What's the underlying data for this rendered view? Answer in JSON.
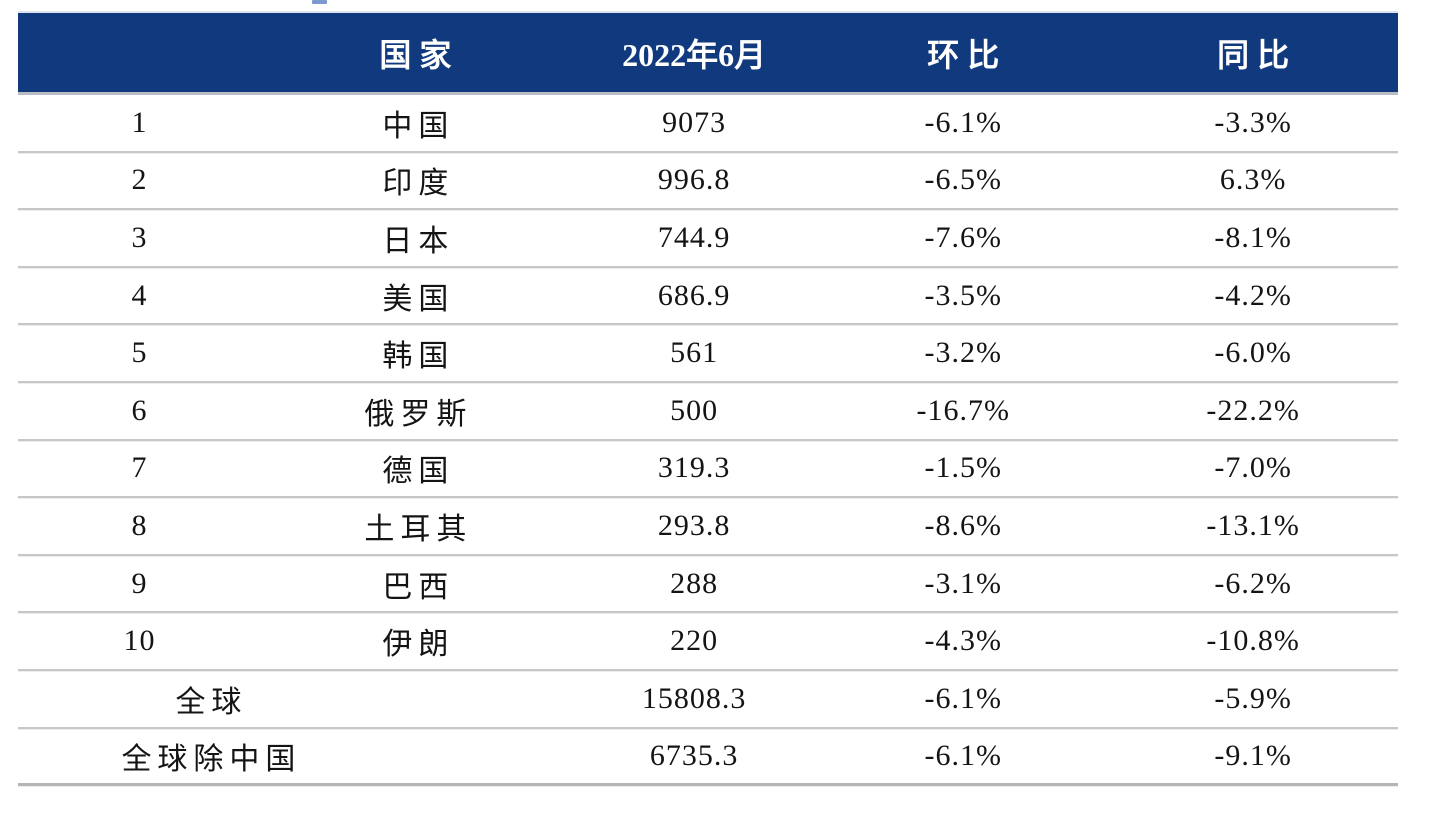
{
  "chart_data": {
    "type": "table",
    "title": "",
    "columns": [
      "",
      "国家",
      "2022年6月",
      "环比",
      "同比"
    ],
    "rows": [
      [
        1,
        "中国",
        9073,
        "-6.1%",
        "-3.3%"
      ],
      [
        2,
        "印度",
        996.8,
        "-6.5%",
        "6.3%"
      ],
      [
        3,
        "日本",
        744.9,
        "-7.6%",
        "-8.1%"
      ],
      [
        4,
        "美国",
        686.9,
        "-3.5%",
        "-4.2%"
      ],
      [
        5,
        "韩国",
        561,
        "-3.2%",
        "-6.0%"
      ],
      [
        6,
        "俄罗斯",
        500,
        "-16.7%",
        "-22.2%"
      ],
      [
        7,
        "德国",
        319.3,
        "-1.5%",
        "-7.0%"
      ],
      [
        8,
        "土耳其",
        293.8,
        "-8.6%",
        "-13.1%"
      ],
      [
        9,
        "巴西",
        288,
        "-3.1%",
        "-6.2%"
      ],
      [
        10,
        "伊朗",
        220,
        "-4.3%",
        "-10.8%"
      ]
    ],
    "totals": [
      [
        "全球",
        15808.3,
        "-6.1%",
        "-5.9%"
      ],
      [
        "全球除中国",
        6735.3,
        "-6.1%",
        "-9.1%"
      ]
    ]
  },
  "table": {
    "header": {
      "rank": "",
      "country": "国家",
      "value": "2022年6月",
      "mom": "环比",
      "yoy": "同比"
    },
    "rows": [
      {
        "rank": "1",
        "country": "中国",
        "value": "9073",
        "mom": "-6.1%",
        "yoy": "-3.3%"
      },
      {
        "rank": "2",
        "country": "印度",
        "value": "996.8",
        "mom": "-6.5%",
        "yoy": "6.3%"
      },
      {
        "rank": "3",
        "country": "日本",
        "value": "744.9",
        "mom": "-7.6%",
        "yoy": "-8.1%"
      },
      {
        "rank": "4",
        "country": "美国",
        "value": "686.9",
        "mom": "-3.5%",
        "yoy": "-4.2%"
      },
      {
        "rank": "5",
        "country": "韩国",
        "value": "561",
        "mom": "-3.2%",
        "yoy": "-6.0%"
      },
      {
        "rank": "6",
        "country": "俄罗斯",
        "value": "500",
        "mom": "-16.7%",
        "yoy": "-22.2%"
      },
      {
        "rank": "7",
        "country": "德国",
        "value": "319.3",
        "mom": "-1.5%",
        "yoy": "-7.0%"
      },
      {
        "rank": "8",
        "country": "土耳其",
        "value": "293.8",
        "mom": "-8.6%",
        "yoy": "-13.1%"
      },
      {
        "rank": "9",
        "country": "巴西",
        "value": "288",
        "mom": "-3.1%",
        "yoy": "-6.2%"
      },
      {
        "rank": "10",
        "country": "伊朗",
        "value": "220",
        "mom": "-4.3%",
        "yoy": "-10.8%"
      }
    ],
    "totals": [
      {
        "label": "全球",
        "value": "15808.3",
        "mom": "-6.1%",
        "yoy": "-5.9%"
      },
      {
        "label": "全球除中国",
        "value": "6735.3",
        "mom": "-6.1%",
        "yoy": "-9.1%"
      }
    ]
  },
  "colors": {
    "header_bg": "#113a7e",
    "header_text": "#ffffff",
    "body_text": "#141414",
    "row_line": "#c7c7c7",
    "bottom_line": "#b5b5b5",
    "top_dash": "#7d9ad0"
  }
}
